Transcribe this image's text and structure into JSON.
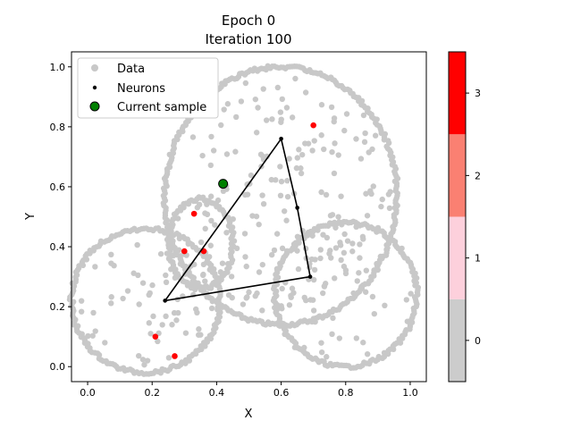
{
  "chart_data": [
    {
      "type": "scatter",
      "title": "Epoch 0",
      "subtitle": "Iteration 100",
      "xlabel": "X",
      "ylabel": "Y",
      "xlim": [
        -0.05,
        1.05
      ],
      "ylim": [
        -0.05,
        1.05
      ],
      "xticks": [
        "0.0",
        "0.2",
        "0.4",
        "0.6",
        "0.8",
        "1.0"
      ],
      "yticks": [
        "0.0",
        "0.2",
        "0.4",
        "0.6",
        "0.8",
        "1.0"
      ],
      "grid": false,
      "legend_position": "upper-left",
      "legend": [
        {
          "label": "Data",
          "marker": "circle",
          "color": "#c8c8c8"
        },
        {
          "label": "Neurons",
          "marker": "small-dot",
          "color": "#000000"
        },
        {
          "label": "Current sample",
          "marker": "circle-outlined",
          "color": "#008000"
        }
      ],
      "shapes_approx": [
        {
          "kind": "ellipse",
          "cx": 0.6,
          "cy": 0.57,
          "rx": 0.36,
          "ry": 0.43
        },
        {
          "kind": "ellipse",
          "cx": 0.18,
          "cy": 0.22,
          "rx": 0.23,
          "ry": 0.24
        },
        {
          "kind": "ellipse",
          "cx": 0.8,
          "cy": 0.24,
          "rx": 0.22,
          "ry": 0.24
        },
        {
          "kind": "ellipse",
          "cx": 0.35,
          "cy": 0.41,
          "rx": 0.1,
          "ry": 0.15
        }
      ],
      "red_points": [
        [
          0.7,
          0.805
        ],
        [
          0.33,
          0.51
        ],
        [
          0.3,
          0.385
        ],
        [
          0.36,
          0.385
        ],
        [
          0.21,
          0.1
        ],
        [
          0.27,
          0.035
        ]
      ],
      "neurons": [
        [
          0.6,
          0.76
        ],
        [
          0.65,
          0.53
        ],
        [
          0.69,
          0.3
        ],
        [
          0.24,
          0.22
        ],
        [
          0.6,
          0.76
        ]
      ],
      "current_sample": [
        0.42,
        0.61
      ]
    },
    {
      "type": "colorbar",
      "ticks": [
        "0",
        "1",
        "2",
        "3"
      ],
      "range": [
        -0.5,
        3.5
      ],
      "colors": [
        "#cccccc",
        "#fdd0dc",
        "#fa8072",
        "#ff0000"
      ]
    }
  ]
}
